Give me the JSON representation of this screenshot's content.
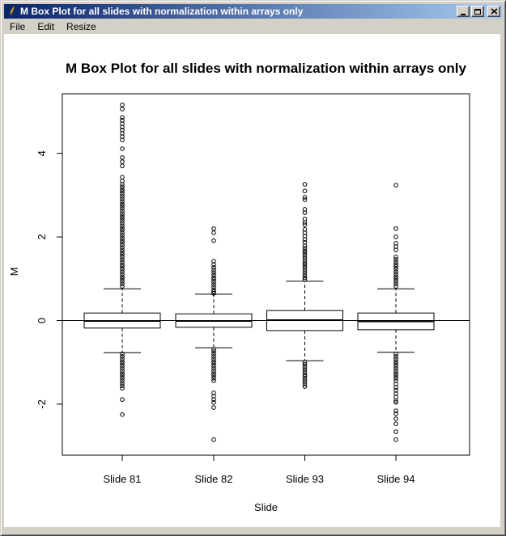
{
  "window": {
    "title": "M Box Plot for all slides with normalization within arrays only",
    "icons": {
      "titlebar": "quill-pen-icon",
      "minimize": "minimize-icon",
      "maximize": "maximize-icon",
      "close": "close-icon"
    }
  },
  "menu": {
    "items": [
      "File",
      "Edit",
      "Resize"
    ]
  },
  "colors": {
    "titlebar_gradient_left": "#0a246a",
    "titlebar_gradient_right": "#a6caf0",
    "window_face": "#d4d0c8",
    "plot_background": "#ffffff",
    "plot_foreground": "#000000"
  },
  "chart_data": {
    "type": "boxplot",
    "title": "M Box Plot for all slides with normalization within arrays only",
    "xlabel": "Slide",
    "ylabel": "M",
    "categories": [
      "Slide 81",
      "Slide 82",
      "Slide 93",
      "Slide 94"
    ],
    "yticks": [
      -2,
      0,
      2,
      4
    ],
    "ylim": [
      -3.2,
      5.4
    ],
    "grid": false,
    "reference_line_y": 0,
    "boxes": [
      {
        "label": "Slide 81",
        "whisker_low": -0.77,
        "q1": -0.18,
        "median": -0.01,
        "q3": 0.18,
        "whisker_high": 0.76,
        "outliers_high": [
          5.16,
          5.06,
          4.86,
          4.79,
          4.71,
          4.63,
          4.56,
          4.48,
          4.4,
          4.32,
          4.11,
          3.9,
          3.8,
          3.7,
          3.43,
          3.34,
          3.26,
          3.2,
          3.14,
          3.09,
          3.03,
          2.97,
          2.91,
          2.85,
          2.79,
          2.74,
          2.68,
          2.62,
          2.56,
          2.5,
          2.45,
          2.39,
          2.33,
          2.27,
          2.21,
          2.16,
          2.1,
          2.04,
          1.98,
          1.92,
          1.87,
          1.81,
          1.75,
          1.69,
          1.63,
          1.58,
          1.52,
          1.46,
          1.4,
          1.34,
          1.29,
          1.23,
          1.17,
          1.11,
          1.05,
          1.0,
          0.94,
          0.88,
          0.82
        ],
        "outliers_low": [
          -0.8,
          -0.86,
          -0.92,
          -0.98,
          -1.03,
          -1.09,
          -1.15,
          -1.21,
          -1.27,
          -1.32,
          -1.38,
          -1.44,
          -1.5,
          -1.56,
          -1.62,
          -1.89,
          -2.25
        ]
      },
      {
        "label": "Slide 82",
        "whisker_low": -0.65,
        "q1": -0.16,
        "median": -0.01,
        "q3": 0.16,
        "whisker_high": 0.63,
        "outliers_high": [
          2.2,
          2.1,
          1.91,
          1.42,
          1.34,
          1.27,
          1.21,
          1.15,
          1.09,
          1.03,
          0.98,
          0.92,
          0.86,
          0.8,
          0.74,
          0.69,
          0.65
        ],
        "outliers_low": [
          -0.69,
          -0.74,
          -0.8,
          -0.86,
          -0.92,
          -0.98,
          -1.03,
          -1.09,
          -1.15,
          -1.21,
          -1.27,
          -1.32,
          -1.38,
          -1.44,
          -1.73,
          -1.81,
          -1.89,
          -1.96,
          -2.08,
          -2.85
        ]
      },
      {
        "label": "Slide 93",
        "whisker_low": -0.96,
        "q1": -0.24,
        "median": 0.01,
        "q3": 0.24,
        "whisker_high": 0.94,
        "outliers_high": [
          3.26,
          3.1,
          2.95,
          2.89,
          2.66,
          2.58,
          2.43,
          2.35,
          2.29,
          2.18,
          2.1,
          2.02,
          1.94,
          1.87,
          1.79,
          1.73,
          1.67,
          1.62,
          1.56,
          1.5,
          1.44,
          1.38,
          1.33,
          1.27,
          1.21,
          1.15,
          1.09,
          1.03,
          0.98
        ],
        "outliers_low": [
          -1.0,
          -1.05,
          -1.11,
          -1.17,
          -1.23,
          -1.29,
          -1.34,
          -1.4,
          -1.46,
          -1.52,
          -1.58
        ]
      },
      {
        "label": "Slide 94",
        "whisker_low": -0.76,
        "q1": -0.22,
        "median": -0.02,
        "q3": 0.18,
        "whisker_high": 0.76,
        "outliers_high": [
          3.24,
          2.2,
          2.0,
          1.85,
          1.77,
          1.69,
          1.52,
          1.46,
          1.4,
          1.34,
          1.29,
          1.23,
          1.17,
          1.11,
          1.05,
          1.0,
          0.94,
          0.88,
          0.82
        ],
        "outliers_low": [
          -0.8,
          -0.86,
          -0.92,
          -0.98,
          -1.03,
          -1.09,
          -1.15,
          -1.21,
          -1.27,
          -1.32,
          -1.38,
          -1.44,
          -1.52,
          -1.6,
          -1.67,
          -1.75,
          -1.83,
          -1.92,
          -1.96,
          -2.16,
          -2.23,
          -2.35,
          -2.47,
          -2.66,
          -2.85
        ]
      }
    ]
  }
}
